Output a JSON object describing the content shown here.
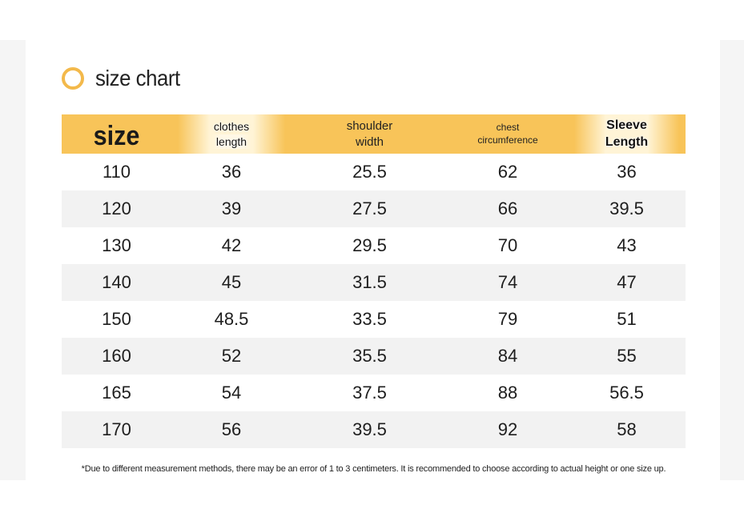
{
  "title": "size chart",
  "header": {
    "size": "size",
    "clothes_length_1": "clothes",
    "clothes_length_2": "length",
    "shoulder_width_1": "shoulder",
    "shoulder_width_2": "width",
    "chest_1": "chest",
    "chest_2": "circumference",
    "sleeve_1": "Sleeve",
    "sleeve_2": "Length"
  },
  "rows": [
    [
      "110",
      "36",
      "25.5",
      "62",
      "36"
    ],
    [
      "120",
      "39",
      "27.5",
      "66",
      "39.5"
    ],
    [
      "130",
      "42",
      "29.5",
      "70",
      "43"
    ],
    [
      "140",
      "45",
      "31.5",
      "74",
      "47"
    ],
    [
      "150",
      "48.5",
      "33.5",
      "79",
      "51"
    ],
    [
      "160",
      "52",
      "35.5",
      "84",
      "55"
    ],
    [
      "165",
      "54",
      "37.5",
      "88",
      "56.5"
    ],
    [
      "170",
      "56",
      "39.5",
      "92",
      "58"
    ]
  ],
  "footnote": "*Due to different measurement methods, there may be an error of 1 to 3 centimeters. It is recommended to choose according to actual height or one size up.",
  "colors": {
    "accent": "#f8c459",
    "circle": "#f3b94b",
    "stripe": "#f2f2f2"
  }
}
